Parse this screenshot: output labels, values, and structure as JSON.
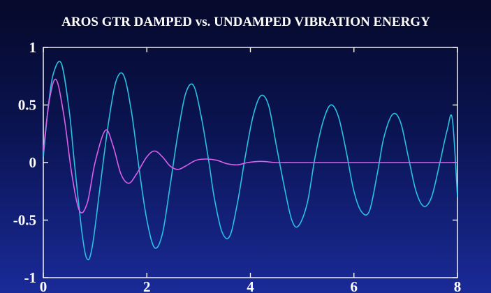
{
  "chart_data": {
    "type": "line",
    "title": "AROS GTR DAMPED vs. UNDAMPED VIBRATION ENERGY",
    "xlabel": "",
    "ylabel": "",
    "xlim": [
      0,
      8
    ],
    "ylim": [
      -1,
      1
    ],
    "x_ticks": [
      0,
      2,
      4,
      6,
      8
    ],
    "x_tick_labels": [
      "0",
      "2",
      "4",
      "6",
      "8"
    ],
    "y_ticks": [
      1,
      0.5,
      0,
      -0.5,
      -1
    ],
    "y_tick_labels": [
      "1",
      "0.5",
      "0",
      "-0.5",
      "-1"
    ],
    "grid": false,
    "series": [
      {
        "color": "#29c1e0",
        "x": [
          0,
          0.1,
          0.2,
          0.35,
          0.5,
          0.6,
          0.75,
          0.85,
          0.95,
          1.1,
          1.25,
          1.4,
          1.55,
          1.7,
          1.85,
          2.0,
          2.15,
          2.3,
          2.45,
          2.6,
          2.75,
          2.9,
          3.05,
          3.2,
          3.3,
          3.45,
          3.6,
          3.75,
          3.9,
          4.05,
          4.2,
          4.35,
          4.5,
          4.65,
          4.8,
          4.93,
          5.1,
          5.25,
          5.4,
          5.55,
          5.7,
          5.85,
          6.0,
          6.15,
          6.3,
          6.45,
          6.58,
          6.75,
          6.9,
          7.05,
          7.2,
          7.35,
          7.5,
          7.65,
          7.8,
          7.9,
          8.0
        ],
        "values": [
          0.05,
          0.5,
          0.78,
          0.86,
          0.45,
          0.0,
          -0.62,
          -0.84,
          -0.72,
          -0.2,
          0.32,
          0.7,
          0.76,
          0.45,
          -0.05,
          -0.5,
          -0.74,
          -0.62,
          -0.2,
          0.25,
          0.6,
          0.67,
          0.4,
          0.0,
          -0.3,
          -0.6,
          -0.64,
          -0.35,
          0.05,
          0.4,
          0.58,
          0.5,
          0.15,
          -0.2,
          -0.5,
          -0.55,
          -0.35,
          0.05,
          0.35,
          0.5,
          0.4,
          0.1,
          -0.25,
          -0.43,
          -0.42,
          -0.1,
          0.22,
          0.42,
          0.35,
          0.05,
          -0.25,
          -0.38,
          -0.3,
          -0.02,
          0.28,
          0.38,
          -0.3
        ]
      },
      {
        "color": "#d860ea",
        "x": [
          0,
          0.12,
          0.25,
          0.4,
          0.55,
          0.7,
          0.85,
          1.0,
          1.2,
          1.35,
          1.5,
          1.65,
          1.8,
          2.0,
          2.15,
          2.3,
          2.45,
          2.6,
          2.75,
          2.95,
          3.15,
          3.35,
          3.55,
          3.75,
          3.95,
          4.2,
          4.5,
          4.8,
          5.1,
          5.4,
          5.7,
          6.0,
          6.5,
          7.0,
          7.5,
          8.0
        ],
        "values": [
          0.1,
          0.55,
          0.72,
          0.4,
          -0.1,
          -0.42,
          -0.35,
          0.0,
          0.28,
          0.14,
          -0.1,
          -0.18,
          -0.1,
          0.05,
          0.1,
          0.05,
          -0.03,
          -0.06,
          -0.03,
          0.02,
          0.03,
          0.02,
          -0.01,
          -0.02,
          0.0,
          0.01,
          0.0,
          0.0,
          0.0,
          0.0,
          0.0,
          0.0,
          0.0,
          0.0,
          0.0,
          0.0
        ]
      }
    ]
  }
}
